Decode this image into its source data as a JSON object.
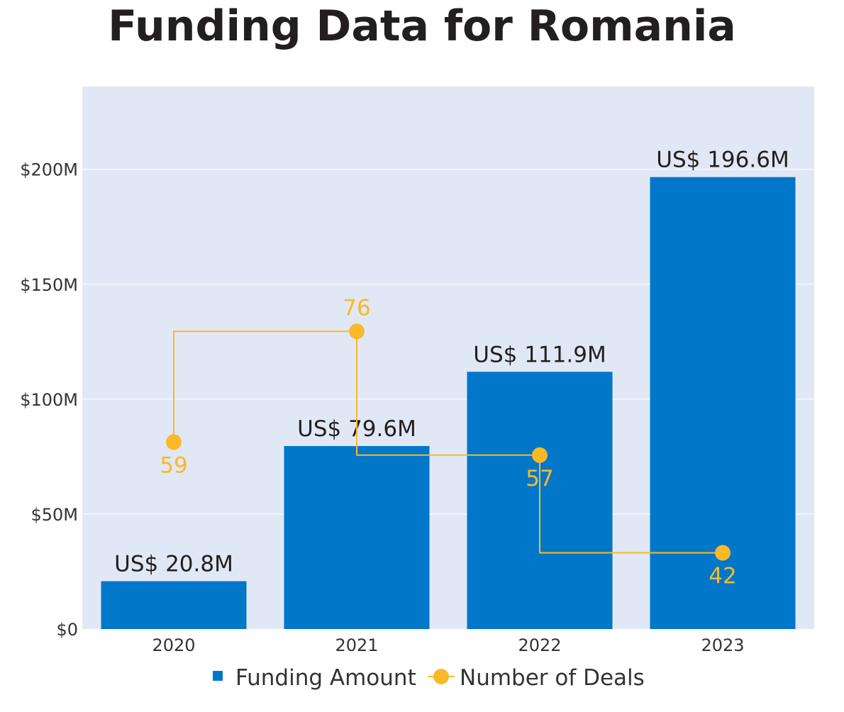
{
  "chart_data": {
    "type": "bar+line",
    "title": "Funding Data for Romania",
    "categories": [
      "2020",
      "2021",
      "2022",
      "2023"
    ],
    "series": [
      {
        "name": "Funding Amount",
        "type": "bar",
        "axis": "y",
        "values": [
          20.8,
          79.6,
          111.9,
          196.6
        ],
        "labels": [
          "US$ 20.8M",
          "US$ 79.6M",
          "US$ 111.9M",
          "US$ 196.6M"
        ],
        "color": "#0077c8"
      },
      {
        "name": "Number of Deals",
        "type": "line",
        "line_shape": "vh",
        "axis": "y2",
        "values": [
          59,
          76,
          57,
          42
        ],
        "labels": [
          "59",
          "76",
          "57",
          "42"
        ],
        "color": "#fbb829"
      }
    ],
    "y": {
      "ylim": [
        0,
        236
      ],
      "ticks": [
        0,
        50,
        100,
        150,
        200
      ],
      "tick_labels": [
        "$0",
        "$50M",
        "$100M",
        "$150M",
        "$200M"
      ]
    },
    "y2": {
      "ylim": [
        30.3,
        113.6
      ],
      "visible": false
    },
    "grid": true,
    "legend": {
      "placement": "bottom-center",
      "entries": [
        "Funding Amount",
        "Number of Deals"
      ]
    },
    "colors": {
      "plot_bg": "#e1e8f5",
      "grid": "#ffffff",
      "text": "#333333"
    }
  }
}
